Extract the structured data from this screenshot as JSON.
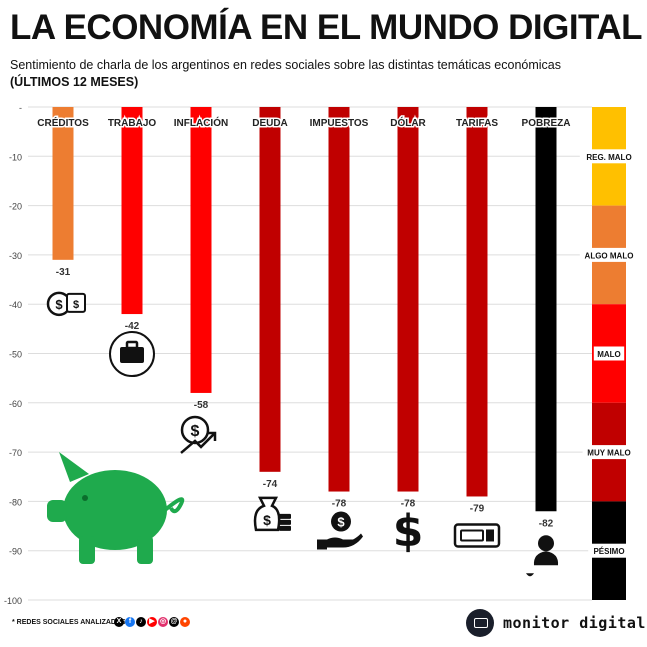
{
  "header": {
    "title": "LA ECONOMÍA EN EL MUNDO DIGITAL",
    "subtitle": "Sentimiento de charla de los argentinos en redes sociales sobre las distintas temáticas económicas",
    "period": "(ÚLTIMOS 12 MESES)"
  },
  "chart_data": {
    "type": "bar",
    "orientation": "vertical, bars hanging from 0 downward",
    "categories": [
      "CRÉDITOS",
      "TRABAJO",
      "INFLACIÓN",
      "DEUDA",
      "IMPUESTOS",
      "DÓLAR",
      "TARIFAS",
      "POBREZA"
    ],
    "values": [
      -31,
      -42,
      -58,
      -74,
      -78,
      -78,
      -79,
      -82
    ],
    "value_labels": [
      "-31",
      "-42",
      "-58",
      "-74",
      "-78",
      "-78",
      "-79",
      "-82"
    ],
    "bar_colors": [
      "#ED7D31",
      "#FF0000",
      "#FF0000",
      "#C00000",
      "#C00000",
      "#C00000",
      "#C00000",
      "#000000"
    ],
    "ylim": [
      -100,
      0
    ],
    "yticks": [
      0,
      -10,
      -20,
      -30,
      -40,
      -50,
      -60,
      -70,
      -80,
      -90,
      -100
    ],
    "ytick_labels": [
      "-",
      "-10",
      "-20",
      "-30",
      "-40",
      "-50",
      "-60",
      "-70",
      "-80",
      "-90",
      "-100"
    ],
    "grid": true,
    "icons": [
      "money-bills-icon",
      "briefcase-icon",
      "dollar-trend-icon",
      "money-bag-icon",
      "hand-coin-icon",
      "dollar-icon",
      "ticket-icon",
      "poor-person-icon"
    ],
    "scale": {
      "bands": [
        {
          "label": "REG. MALO",
          "from": 0,
          "to": -20,
          "color": "#FFC000"
        },
        {
          "label": "ALGO MALO",
          "from": -20,
          "to": -40,
          "color": "#ED7D31"
        },
        {
          "label": "MALO",
          "from": -40,
          "to": -60,
          "color": "#FF0000"
        },
        {
          "label": "MUY MALO",
          "from": -60,
          "to": -80,
          "color": "#C00000"
        },
        {
          "label": "PÉSIMO",
          "from": -80,
          "to": -100,
          "color": "#000000"
        }
      ]
    }
  },
  "footer": {
    "note": "* REDES SOCIALES ANALIZADAS",
    "networks": [
      "X",
      "f",
      "♪",
      "▶",
      "◎",
      "@",
      "●"
    ],
    "network_colors": [
      "#000000",
      "#1877F2",
      "#000000",
      "#FF0000",
      "#E1306C",
      "#000000",
      "#FF4500"
    ],
    "brand": "monitor digital"
  },
  "decor": {
    "piggy_bank_color": "#1FAA4D"
  }
}
